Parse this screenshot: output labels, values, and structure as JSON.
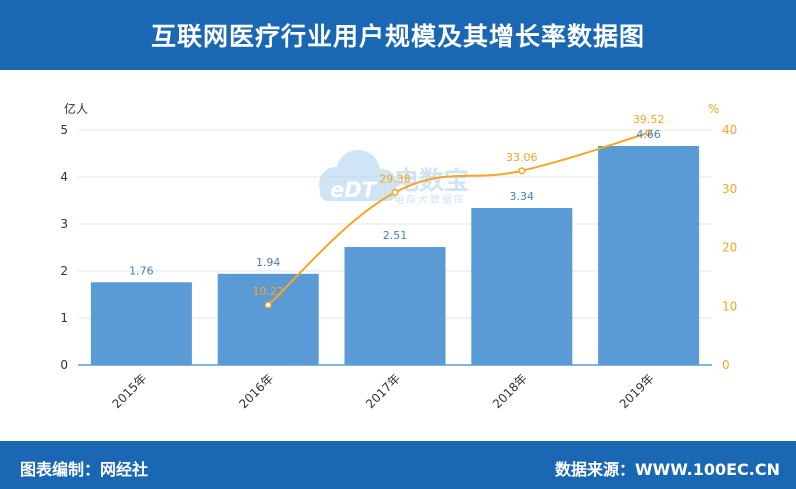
{
  "header": {
    "title": "互联网医疗行业用户规模及其增长率数据图"
  },
  "footer": {
    "left": "图表编制：网经社",
    "right": "数据来源：WWW.100EC.CN"
  },
  "watermark": {
    "logo_text": "eDT",
    "title": "电数宝",
    "subtitle": "电商大数据库"
  },
  "colors": {
    "header_bg": "#1a67b3",
    "bar": "#5b9bd5",
    "line": "#f5a623",
    "bar_label": "#4a7fb8"
  },
  "chart_data": {
    "type": "bar+line",
    "categories": [
      "2015年",
      "2016年",
      "2017年",
      "2018年",
      "2019年"
    ],
    "series": [
      {
        "type": "bar",
        "axis": "left",
        "values": [
          1.76,
          1.94,
          2.51,
          3.34,
          4.66
        ]
      },
      {
        "type": "line",
        "axis": "right",
        "values": [
          null,
          10.22,
          29.38,
          33.06,
          39.52
        ]
      }
    ],
    "y_left": {
      "label": "亿人",
      "ticks": [
        0,
        1,
        2,
        3,
        4,
        5
      ],
      "range": [
        0,
        5
      ]
    },
    "y_right": {
      "label": "%",
      "ticks": [
        0,
        10,
        20,
        30,
        40
      ],
      "range": [
        0,
        40
      ]
    },
    "grid": true,
    "legend": "none"
  }
}
